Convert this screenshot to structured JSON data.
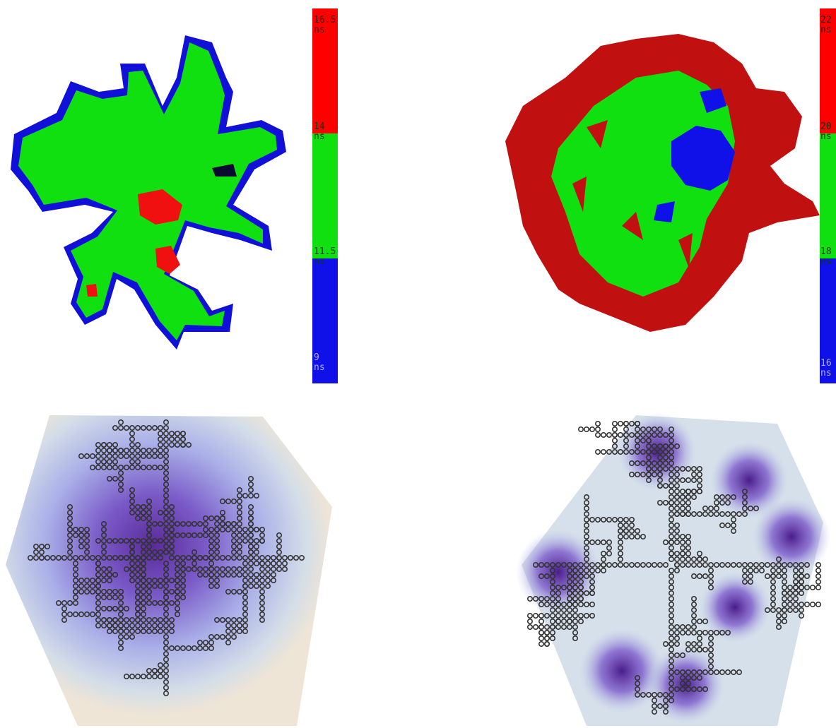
{
  "colorbars": [
    {
      "labels": [
        {
          "value": "16.5",
          "unit": "ns"
        },
        {
          "value": "14",
          "unit": "ns"
        },
        {
          "value": "11.5",
          "unit": "ns"
        },
        {
          "value": "9",
          "unit": "ns"
        }
      ]
    },
    {
      "labels": [
        {
          "value": "22",
          "unit": "ns"
        },
        {
          "value": "20",
          "unit": "ns"
        },
        {
          "value": "18",
          "unit": "ns"
        },
        {
          "value": "16",
          "unit": "ns"
        }
      ]
    }
  ]
}
